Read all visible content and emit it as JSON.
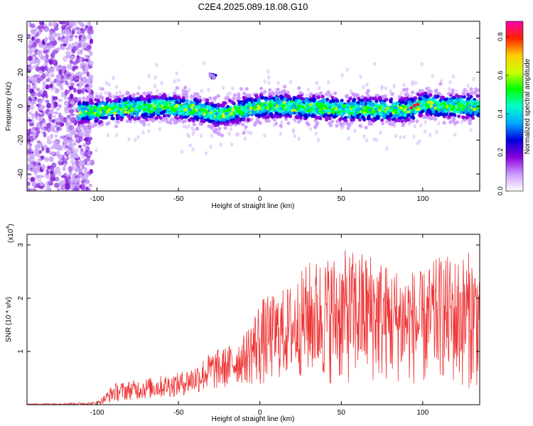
{
  "title": "C2E4.2025.089.18.08.G10",
  "chart_data": [
    {
      "type": "heatmap",
      "xlabel": "Height of straight line (km)",
      "ylabel": "Frequency (Hz)",
      "xlim": [
        -143,
        135
      ],
      "ylim": [
        -50,
        50
      ],
      "x_ticks": [
        -100,
        -50,
        0,
        50,
        100
      ],
      "y_ticks": [
        -40,
        -20,
        0,
        20,
        40
      ],
      "x_tick_labels": [
        "-100",
        "-50",
        "0",
        "50",
        "100"
      ],
      "y_tick_labels": [
        "-40",
        "-20",
        "0",
        "20",
        "40"
      ],
      "grid": false,
      "colorbar": {
        "label": "Normalized spectral amplitude",
        "range": [
          0,
          0.88
        ],
        "ticks": [
          0,
          0.2,
          0.4,
          0.6,
          0.8
        ],
        "tick_labels": [
          "0.0",
          "0.2",
          "0.4",
          "0.6",
          "0.8"
        ],
        "colors": [
          "#ffffff",
          "#cc99ff",
          "#8800dd",
          "#0000dd",
          "#00aaff",
          "#00ffcc",
          "#00ff00",
          "#ccff00",
          "#ffcc00",
          "#ff2200",
          "#ff00aa"
        ]
      },
      "signal_band_center": [
        [
          -130,
          -3
        ],
        [
          -110,
          -3
        ],
        [
          -100,
          -3
        ],
        [
          -90,
          -2
        ],
        [
          -80,
          -1
        ],
        [
          -70,
          -1
        ],
        [
          -60,
          0
        ],
        [
          -50,
          -1
        ],
        [
          -40,
          -2
        ],
        [
          -35,
          -3
        ],
        [
          -30,
          -4
        ],
        [
          -25,
          -5
        ],
        [
          -20,
          -4
        ],
        [
          -10,
          -2
        ],
        [
          0,
          0
        ],
        [
          10,
          0
        ],
        [
          20,
          0
        ],
        [
          30,
          -1
        ],
        [
          40,
          -1
        ],
        [
          50,
          -2
        ],
        [
          60,
          -2
        ],
        [
          70,
          -2
        ],
        [
          80,
          -2
        ],
        [
          90,
          -2
        ],
        [
          95,
          -1
        ],
        [
          100,
          1
        ],
        [
          105,
          1
        ],
        [
          110,
          0
        ],
        [
          120,
          0
        ],
        [
          130,
          0
        ],
        [
          135,
          0
        ]
      ],
      "signal_band_width_hz": 14,
      "noise_region_x": [
        -143,
        -103
      ],
      "secondary_feature": {
        "x": -29,
        "y": 18
      }
    },
    {
      "type": "line",
      "xlabel": "Height of straight line (km)",
      "ylabel": "SNR (10 * v/v)",
      "y_multiplier_label": "(x10",
      "y_multiplier_exp": "4",
      "xlim": [
        -143,
        135
      ],
      "ylim": [
        0,
        3.2
      ],
      "x_ticks": [
        -100,
        -50,
        0,
        50,
        100
      ],
      "y_ticks": [
        1,
        2,
        3
      ],
      "x_tick_labels": [
        "-100",
        "-50",
        "0",
        "50",
        "100"
      ],
      "y_tick_labels": [
        "1",
        "2",
        "3"
      ],
      "grid": false,
      "series": [
        {
          "color": "#ee3333",
          "envelope_x": [
            -143,
            -120,
            -100,
            -95,
            -90,
            -80,
            -70,
            -60,
            -50,
            -40,
            -30,
            -20,
            -10,
            0,
            10,
            20,
            30,
            40,
            50,
            60,
            70,
            80,
            90,
            100,
            110,
            120,
            130,
            135
          ],
          "envelope_max": [
            0.02,
            0.03,
            0.05,
            0.2,
            0.4,
            0.45,
            0.5,
            0.55,
            0.6,
            0.75,
            1.0,
            1.1,
            1.3,
            2.0,
            2.1,
            2.3,
            2.7,
            2.8,
            2.9,
            2.9,
            2.9,
            2.6,
            2.6,
            2.5,
            2.8,
            2.8,
            2.9,
            2.8
          ],
          "envelope_min": [
            0.0,
            0.0,
            0.0,
            0.02,
            0.05,
            0.08,
            0.1,
            0.12,
            0.15,
            0.2,
            0.25,
            0.3,
            0.4,
            0.3,
            0.45,
            0.5,
            0.5,
            0.4,
            0.35,
            0.4,
            0.4,
            0.4,
            0.4,
            0.3,
            0.5,
            0.3,
            0.3,
            0.3
          ]
        }
      ]
    }
  ]
}
